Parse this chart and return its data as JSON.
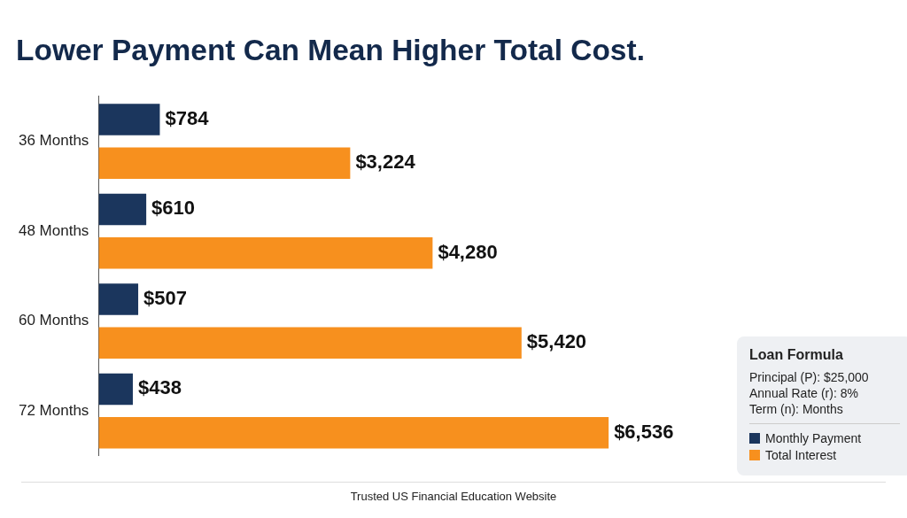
{
  "chart_data": {
    "type": "bar",
    "orientation": "horizontal",
    "title": "Lower Payment Can Mean Higher Total Cost.",
    "categories": [
      "36 Months",
      "48 Months",
      "60 Months",
      "72 Months"
    ],
    "series": [
      {
        "name": "Monthly Payment",
        "color": "#1b365d",
        "values": [
          784,
          610,
          507,
          438
        ],
        "value_labels": [
          "$784",
          "$610",
          "$507",
          "$438"
        ]
      },
      {
        "name": "Total Interest",
        "color": "#f7901e",
        "values": [
          3224,
          4280,
          5420,
          6536
        ],
        "value_labels": [
          "$3,224",
          "$4,280",
          "$5,420",
          "$6,536"
        ]
      }
    ],
    "legend": "bottom right",
    "legend_title": "Loan Formula",
    "annotations": [
      "Principal (P): $25,000",
      "Annual Rate (r): 8%",
      "Term (n): Months",
      "Trusted US Financial Education Website"
    ]
  }
}
